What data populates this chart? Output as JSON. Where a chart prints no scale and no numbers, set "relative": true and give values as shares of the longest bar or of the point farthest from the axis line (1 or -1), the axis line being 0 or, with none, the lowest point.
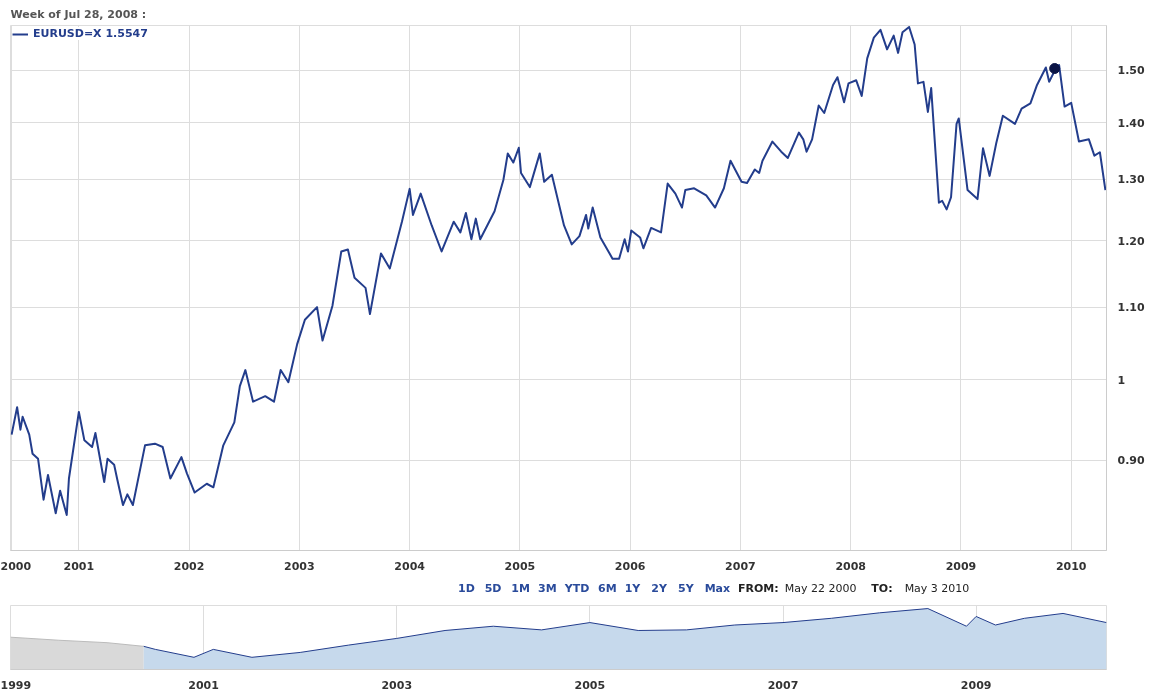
{
  "chart_data": [
    {
      "type": "line",
      "title": "Week of Jul 28, 2008 :",
      "legend": "top left",
      "log": "y",
      "grid": true,
      "line_style": "solid",
      "marker": "none",
      "xlim": [
        2000.38,
        2010.32
      ],
      "xticks": [
        {
          "value": 2000.39,
          "label": "2000"
        },
        2001,
        2002,
        2003,
        2004,
        2005,
        2006,
        2007,
        2008,
        2009,
        2010
      ],
      "ylim": [
        0.8,
        1.59
      ],
      "yticks": [
        {
          "value": 0.9,
          "label": "0.90"
        },
        1,
        {
          "value": 1.1,
          "label": "1.10"
        },
        {
          "value": 1.2,
          "label": "1.20"
        },
        {
          "value": 1.3,
          "label": "1.30"
        },
        {
          "value": 1.4,
          "label": "1.40"
        },
        {
          "value": 1.5,
          "label": "1.50"
        }
      ],
      "annotations": [
        "1D",
        "5D",
        "1M",
        "3M",
        "YTD",
        "6M",
        "1Y",
        "2Y",
        "5Y",
        "Max",
        "FROM:",
        "May 22 2000",
        "TO:",
        "May 3 2010"
      ],
      "series": [
        {
          "name": "EURUSD=X 1.5547",
          "color": "#233d8c",
          "x": [
            2000.39,
            2000.44,
            2000.47,
            2000.49,
            2000.55,
            2000.58,
            2000.63,
            2000.68,
            2000.72,
            2000.79,
            2000.83,
            2000.89,
            2000.91,
            2001.0,
            2001.05,
            2001.12,
            2001.15,
            2001.23,
            2001.26,
            2001.32,
            2001.35,
            2001.4,
            2001.44,
            2001.49,
            2001.6,
            2001.69,
            2001.76,
            2001.83,
            2001.93,
            2001.98,
            2002.05,
            2002.16,
            2002.22,
            2002.31,
            2002.41,
            2002.46,
            2002.51,
            2002.58,
            2002.69,
            2002.77,
            2002.83,
            2002.9,
            2002.98,
            2003.05,
            2003.16,
            2003.21,
            2003.3,
            2003.38,
            2003.44,
            2003.5,
            2003.6,
            2003.64,
            2003.74,
            2003.82,
            2003.93,
            2004.0,
            2004.03,
            2004.1,
            2004.2,
            2004.29,
            2004.4,
            2004.46,
            2004.51,
            2004.56,
            2004.6,
            2004.64,
            2004.77,
            2004.85,
            2004.89,
            2004.94,
            2004.99,
            2005.01,
            2005.09,
            2005.18,
            2005.22,
            2005.29,
            2005.4,
            2005.47,
            2005.54,
            2005.6,
            2005.62,
            2005.66,
            2005.73,
            2005.84,
            2005.9,
            2005.95,
            2005.98,
            2006.01,
            2006.09,
            2006.12,
            2006.19,
            2006.28,
            2006.34,
            2006.41,
            2006.47,
            2006.5,
            2006.58,
            2006.69,
            2006.77,
            2006.85,
            2006.91,
            2007.01,
            2007.06,
            2007.13,
            2007.17,
            2007.2,
            2007.29,
            2007.37,
            2007.43,
            2007.53,
            2007.57,
            2007.6,
            2007.65,
            2007.71,
            2007.76,
            2007.84,
            2007.88,
            2007.94,
            2007.98,
            2008.05,
            2008.1,
            2008.15,
            2008.21,
            2008.27,
            2008.33,
            2008.39,
            2008.43,
            2008.47,
            2008.53,
            2008.58,
            2008.61,
            2008.66,
            2008.7,
            2008.73,
            2008.8,
            2008.83,
            2008.87,
            2008.91,
            2008.96,
            2008.98,
            2009.06,
            2009.15,
            2009.2,
            2009.26,
            2009.32,
            2009.38,
            2009.49,
            2009.55,
            2009.63,
            2009.69,
            2009.77,
            2009.8,
            2009.86,
            2009.89,
            2009.94,
            2010.0,
            2010.07,
            2010.16,
            2010.21,
            2010.26,
            2010.31
          ],
          "values": [
            0.931,
            0.965,
            0.937,
            0.953,
            0.931,
            0.908,
            0.902,
            0.855,
            0.883,
            0.84,
            0.865,
            0.838,
            0.879,
            0.959,
            0.924,
            0.916,
            0.933,
            0.875,
            0.902,
            0.895,
            0.877,
            0.849,
            0.861,
            0.849,
            0.918,
            0.92,
            0.916,
            0.879,
            0.904,
            0.885,
            0.863,
            0.873,
            0.869,
            0.918,
            0.946,
            0.992,
            1.013,
            0.972,
            0.979,
            0.972,
            1.013,
            0.997,
            1.048,
            1.082,
            1.1,
            1.053,
            1.102,
            1.183,
            1.186,
            1.143,
            1.128,
            1.09,
            1.18,
            1.157,
            1.23,
            1.284,
            1.241,
            1.276,
            1.224,
            1.183,
            1.23,
            1.213,
            1.244,
            1.202,
            1.235,
            1.202,
            1.247,
            1.299,
            1.345,
            1.329,
            1.355,
            1.311,
            1.287,
            1.345,
            1.296,
            1.308,
            1.224,
            1.194,
            1.207,
            1.241,
            1.219,
            1.253,
            1.205,
            1.172,
            1.172,
            1.202,
            1.183,
            1.216,
            1.205,
            1.188,
            1.22,
            1.213,
            1.293,
            1.276,
            1.253,
            1.282,
            1.285,
            1.273,
            1.253,
            1.285,
            1.332,
            1.296,
            1.294,
            1.317,
            1.311,
            1.332,
            1.366,
            1.348,
            1.337,
            1.382,
            1.37,
            1.348,
            1.37,
            1.432,
            1.418,
            1.471,
            1.486,
            1.438,
            1.474,
            1.48,
            1.45,
            1.523,
            1.565,
            1.581,
            1.541,
            1.569,
            1.534,
            1.576,
            1.587,
            1.551,
            1.474,
            1.477,
            1.42,
            1.465,
            1.261,
            1.264,
            1.25,
            1.27,
            1.398,
            1.408,
            1.282,
            1.267,
            1.354,
            1.306,
            1.363,
            1.413,
            1.398,
            1.426,
            1.436,
            1.471,
            1.505,
            1.477,
            1.503,
            1.51,
            1.43,
            1.437,
            1.366,
            1.37,
            1.341,
            1.347,
            1.282
          ]
        },
        {
          "type": "scatter",
          "marker": "circle",
          "color": "#0a1445",
          "x": [
            2009.85
          ],
          "values": [
            1.503
          ]
        }
      ]
    },
    {
      "type": "area",
      "relative": true,
      "grid": "x",
      "tick_labels": "x",
      "xlim": [
        1999.0,
        2010.35
      ],
      "xticks": [
        1999,
        2001,
        2003,
        2005,
        2007,
        2009
      ],
      "series": [
        {
          "color": "#d9d9d9",
          "x": [
            1999.0,
            1999.5,
            2000.0,
            2000.38
          ],
          "values": [
            0.53,
            0.48,
            0.44,
            0.38
          ]
        },
        {
          "color": "#c6d9ec",
          "x": [
            2000.38,
            2000.5,
            2000.9,
            2001.1,
            2001.5,
            2002.0,
            2002.5,
            2003.0,
            2003.5,
            2004.0,
            2004.5,
            2005.0,
            2005.5,
            2006.0,
            2006.5,
            2007.0,
            2007.5,
            2008.0,
            2008.5,
            2008.9,
            2009.0,
            2009.2,
            2009.5,
            2009.9,
            2010.35
          ],
          "values": [
            0.38,
            0.33,
            0.2,
            0.33,
            0.2,
            0.28,
            0.4,
            0.51,
            0.64,
            0.71,
            0.65,
            0.77,
            0.64,
            0.65,
            0.73,
            0.77,
            0.84,
            0.93,
            1.0,
            0.71,
            0.87,
            0.73,
            0.84,
            0.92,
            0.77
          ]
        }
      ]
    }
  ]
}
